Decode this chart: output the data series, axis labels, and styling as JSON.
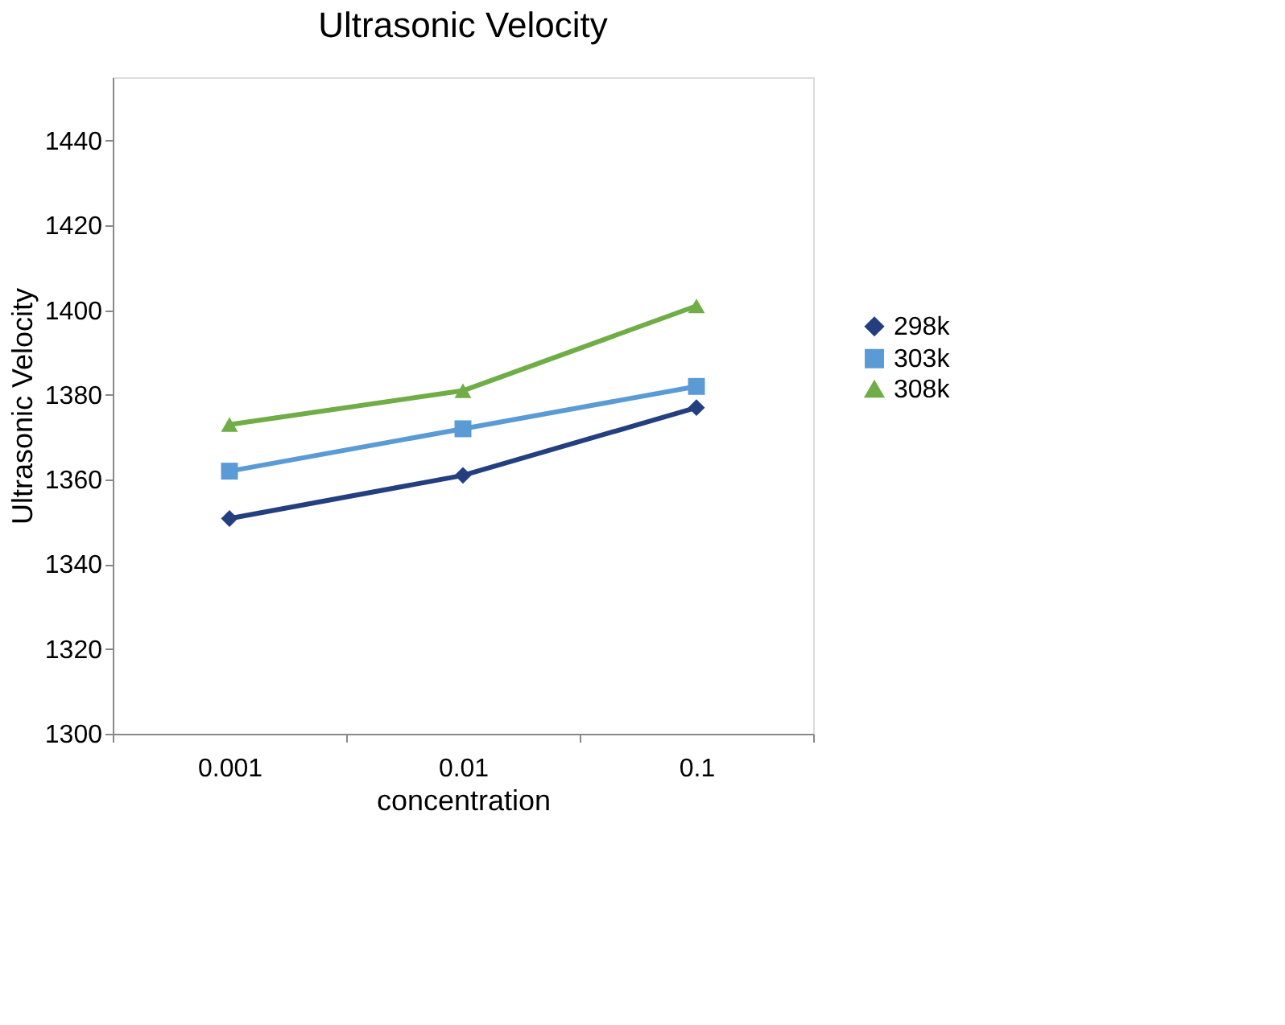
{
  "chart_data": {
    "type": "line",
    "title": "Ultrasonic Velocity",
    "xlabel": "concentration",
    "ylabel": "Ultrasonic Velocity",
    "categories": [
      "0.001",
      "0.01",
      "0.1"
    ],
    "series": [
      {
        "name": "298k",
        "color": "#243f7f",
        "marker": "diamond",
        "values": [
          1350.8,
          1361,
          1377
        ]
      },
      {
        "name": "303k",
        "color": "#5b9bd5",
        "marker": "square",
        "values": [
          1362,
          1372,
          1382
        ]
      },
      {
        "name": "308k",
        "color": "#70ad47",
        "marker": "triangle",
        "values": [
          1373,
          1381,
          1401
        ]
      }
    ],
    "ylim": [
      1300,
      1455
    ],
    "yticks": [
      1300,
      1320,
      1340,
      1360,
      1380,
      1400,
      1420,
      1440
    ],
    "grid": false,
    "legend": "right",
    "line_style": "solid"
  }
}
